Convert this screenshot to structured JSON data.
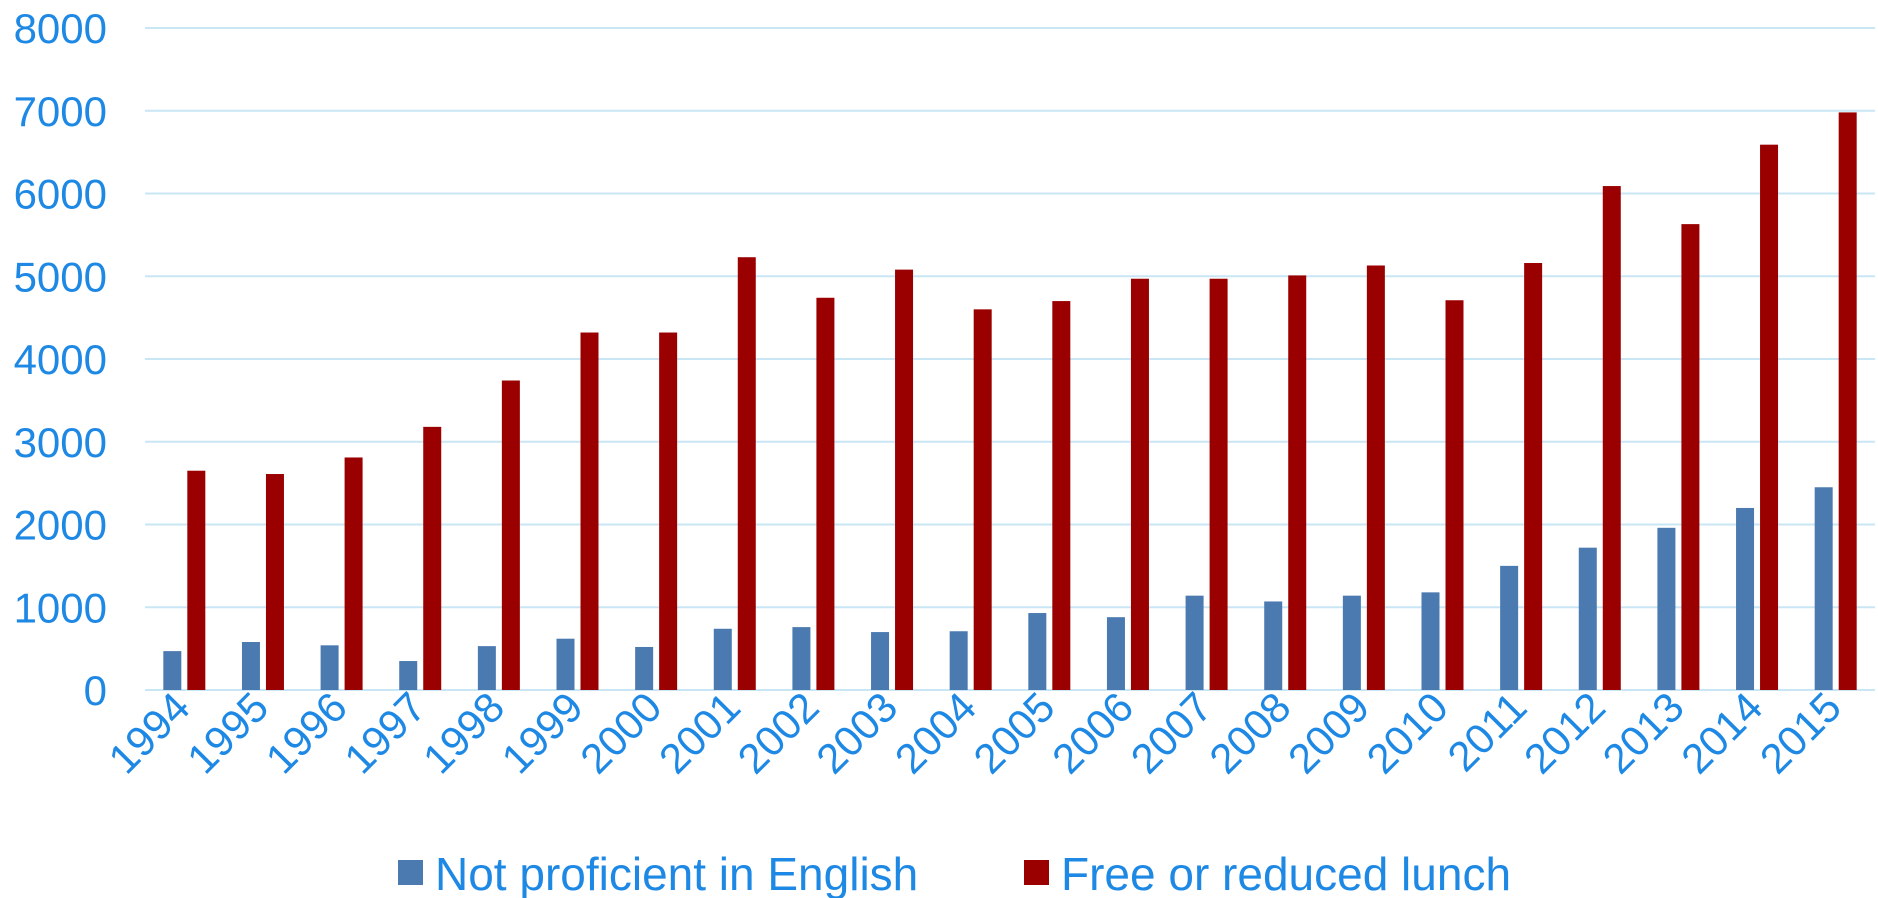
{
  "chart_data": {
    "type": "bar",
    "categories": [
      "1994",
      "1995",
      "1996",
      "1997",
      "1998",
      "1999",
      "2000",
      "2001",
      "2002",
      "2003",
      "2004",
      "2005",
      "2006",
      "2007",
      "2008",
      "2009",
      "2010",
      "2011",
      "2012",
      "2013",
      "2014",
      "2015"
    ],
    "series": [
      {
        "name": "Not proficient in English",
        "color": "#4a7ab0",
        "values": [
          470,
          580,
          540,
          350,
          530,
          620,
          520,
          740,
          760,
          700,
          710,
          930,
          880,
          1140,
          1070,
          1140,
          1180,
          1500,
          1720,
          1960,
          2200,
          2450
        ]
      },
      {
        "name": "Free or reduced lunch",
        "color": "#9b0000",
        "values": [
          2650,
          2610,
          2810,
          3180,
          3740,
          4320,
          4320,
          5230,
          4740,
          5080,
          4600,
          4700,
          4970,
          4970,
          5010,
          5130,
          4710,
          5160,
          6090,
          5630,
          6590,
          6980
        ]
      }
    ],
    "yticks": [
      0,
      1000,
      2000,
      3000,
      4000,
      5000,
      6000,
      7000,
      8000
    ],
    "ylim": [
      0,
      8000
    ],
    "grid": true,
    "legend_position": "bottom",
    "axis_color": "#1e88e5",
    "grid_color": "#c9e6f5"
  }
}
